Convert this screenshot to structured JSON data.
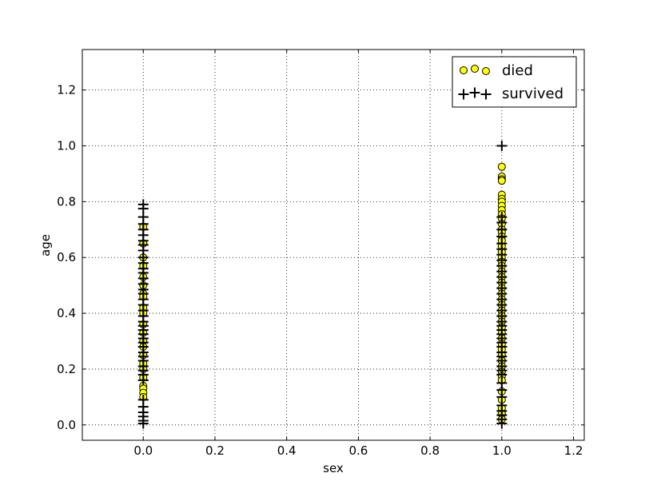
{
  "chart_data": {
    "type": "scatter",
    "xlabel": "sex",
    "ylabel": "age",
    "xlim": [
      -0.17,
      1.23
    ],
    "ylim": [
      -0.055,
      1.345
    ],
    "x_ticks": [
      "0.0",
      "0.2",
      "0.4",
      "0.6",
      "0.8",
      "1.0",
      "1.2"
    ],
    "y_ticks": [
      "0.0",
      "0.2",
      "0.4",
      "0.6",
      "0.8",
      "1.0",
      "1.2"
    ],
    "grid": true,
    "legend_position": "top-right",
    "series": [
      {
        "name": "died",
        "marker": "circle",
        "color": "#ffff00",
        "edge_color": "#000000",
        "points": [
          [
            0,
            0.71
          ],
          [
            0,
            0.65
          ],
          [
            0,
            0.6
          ],
          [
            0,
            0.57
          ],
          [
            0,
            0.53
          ],
          [
            0,
            0.5
          ],
          [
            0,
            0.47
          ],
          [
            0,
            0.46
          ],
          [
            0,
            0.42
          ],
          [
            0,
            0.4
          ],
          [
            0,
            0.36
          ],
          [
            0,
            0.33
          ],
          [
            0,
            0.3
          ],
          [
            0,
            0.28
          ],
          [
            0,
            0.25
          ],
          [
            0,
            0.22
          ],
          [
            0,
            0.2
          ],
          [
            0,
            0.17
          ],
          [
            0,
            0.14
          ],
          [
            0,
            0.13
          ],
          [
            0,
            0.115
          ],
          [
            0,
            0.1
          ],
          [
            1,
            0.925
          ],
          [
            1,
            0.89
          ],
          [
            1,
            0.88
          ],
          [
            1,
            0.875
          ],
          [
            1,
            0.825
          ],
          [
            1,
            0.81
          ],
          [
            1,
            0.8
          ],
          [
            1,
            0.785
          ],
          [
            1,
            0.77
          ],
          [
            1,
            0.755
          ],
          [
            1,
            0.74
          ],
          [
            1,
            0.72
          ],
          [
            1,
            0.7
          ],
          [
            1,
            0.69
          ],
          [
            1,
            0.675
          ],
          [
            1,
            0.66
          ],
          [
            1,
            0.64
          ],
          [
            1,
            0.62
          ],
          [
            1,
            0.6
          ],
          [
            1,
            0.585
          ],
          [
            1,
            0.57
          ],
          [
            1,
            0.55
          ],
          [
            1,
            0.53
          ],
          [
            1,
            0.51
          ],
          [
            1,
            0.49
          ],
          [
            1,
            0.47
          ],
          [
            1,
            0.45
          ],
          [
            1,
            0.43
          ],
          [
            1,
            0.41
          ],
          [
            1,
            0.39
          ],
          [
            1,
            0.37
          ],
          [
            1,
            0.35
          ],
          [
            1,
            0.33
          ],
          [
            1,
            0.31
          ],
          [
            1,
            0.29
          ],
          [
            1,
            0.27
          ],
          [
            1,
            0.25
          ],
          [
            1,
            0.23
          ],
          [
            1,
            0.21
          ],
          [
            1,
            0.19
          ],
          [
            1,
            0.175
          ],
          [
            1,
            0.16
          ],
          [
            1,
            0.12
          ],
          [
            1,
            0.09
          ],
          [
            1,
            0.06
          ],
          [
            1,
            0.04
          ],
          [
            1,
            0.02
          ]
        ]
      },
      {
        "name": "survived",
        "marker": "plus",
        "color": "#000000",
        "points": [
          [
            0,
            0.79
          ],
          [
            0,
            0.775
          ],
          [
            0,
            0.745
          ],
          [
            0,
            0.72
          ],
          [
            0,
            0.7
          ],
          [
            0,
            0.68
          ],
          [
            0,
            0.66
          ],
          [
            0,
            0.645
          ],
          [
            0,
            0.625
          ],
          [
            0,
            0.6
          ],
          [
            0,
            0.58
          ],
          [
            0,
            0.56
          ],
          [
            0,
            0.545
          ],
          [
            0,
            0.525
          ],
          [
            0,
            0.505
          ],
          [
            0,
            0.485
          ],
          [
            0,
            0.47
          ],
          [
            0,
            0.45
          ],
          [
            0,
            0.43
          ],
          [
            0,
            0.41
          ],
          [
            0,
            0.39
          ],
          [
            0,
            0.37
          ],
          [
            0,
            0.355
          ],
          [
            0,
            0.34
          ],
          [
            0,
            0.325
          ],
          [
            0,
            0.31
          ],
          [
            0,
            0.295
          ],
          [
            0,
            0.28
          ],
          [
            0,
            0.26
          ],
          [
            0,
            0.245
          ],
          [
            0,
            0.23
          ],
          [
            0,
            0.21
          ],
          [
            0,
            0.195
          ],
          [
            0,
            0.18
          ],
          [
            0,
            0.16
          ],
          [
            0,
            0.09
          ],
          [
            0,
            0.065
          ],
          [
            0,
            0.045
          ],
          [
            0,
            0.03
          ],
          [
            0,
            0.015
          ],
          [
            0,
            0.005
          ],
          [
            1,
            1.0
          ],
          [
            1,
            0.745
          ],
          [
            1,
            0.725
          ],
          [
            1,
            0.7
          ],
          [
            1,
            0.675
          ],
          [
            1,
            0.65
          ],
          [
            1,
            0.63
          ],
          [
            1,
            0.61
          ],
          [
            1,
            0.59
          ],
          [
            1,
            0.57
          ],
          [
            1,
            0.55
          ],
          [
            1,
            0.53
          ],
          [
            1,
            0.51
          ],
          [
            1,
            0.49
          ],
          [
            1,
            0.47
          ],
          [
            1,
            0.45
          ],
          [
            1,
            0.43
          ],
          [
            1,
            0.41
          ],
          [
            1,
            0.39
          ],
          [
            1,
            0.37
          ],
          [
            1,
            0.355
          ],
          [
            1,
            0.34
          ],
          [
            1,
            0.325
          ],
          [
            1,
            0.31
          ],
          [
            1,
            0.295
          ],
          [
            1,
            0.28
          ],
          [
            1,
            0.26
          ],
          [
            1,
            0.245
          ],
          [
            1,
            0.23
          ],
          [
            1,
            0.21
          ],
          [
            1,
            0.195
          ],
          [
            1,
            0.18
          ],
          [
            1,
            0.15
          ],
          [
            1,
            0.125
          ],
          [
            1,
            0.1
          ],
          [
            1,
            0.07
          ],
          [
            1,
            0.05
          ],
          [
            1,
            0.035
          ],
          [
            1,
            0.02
          ],
          [
            1,
            0.005
          ]
        ]
      }
    ]
  }
}
